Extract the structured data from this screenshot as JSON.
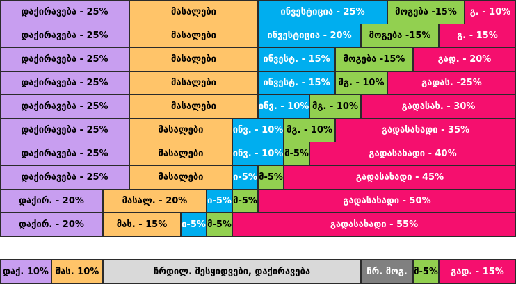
{
  "colors": {
    "lavender": "#c89ef0",
    "orange": "#ffc469",
    "blue": "#00aeef",
    "green": "#92d050",
    "pink": "#f50f6e",
    "gray": "#d9d9d9",
    "dark_gray": "#808080"
  },
  "chart_data": {
    "type": "stacked-bar",
    "rows": [
      {
        "segments": [
          {
            "label": "დაქირავება - 25%",
            "value": 25,
            "color": "lavender"
          },
          {
            "label": "მასალები",
            "value": 25,
            "color": "orange"
          },
          {
            "label": "ინვესტიცია - 25%",
            "value": 25,
            "color": "blue"
          },
          {
            "label": "მოგება -15%",
            "value": 15,
            "color": "green"
          },
          {
            "label": "გ. - 10%",
            "value": 10,
            "color": "pink"
          }
        ]
      },
      {
        "segments": [
          {
            "label": "დაქირავება - 25%",
            "value": 25,
            "color": "lavender"
          },
          {
            "label": "მასალები",
            "value": 25,
            "color": "orange"
          },
          {
            "label": "ინვესტიცია - 20%",
            "value": 20,
            "color": "blue"
          },
          {
            "label": "მოგება -15%",
            "value": 15,
            "color": "green"
          },
          {
            "label": "გ. - 15%",
            "value": 15,
            "color": "pink"
          }
        ]
      },
      {
        "segments": [
          {
            "label": "დაქირავება - 25%",
            "value": 25,
            "color": "lavender"
          },
          {
            "label": "მასალები",
            "value": 25,
            "color": "orange"
          },
          {
            "label": "ინვესტ. - 15%",
            "value": 15,
            "color": "blue"
          },
          {
            "label": "მოგება -15%",
            "value": 15,
            "color": "green"
          },
          {
            "label": "გად. - 20%",
            "value": 20,
            "color": "pink"
          }
        ]
      },
      {
        "segments": [
          {
            "label": "დაქირავება - 25%",
            "value": 25,
            "color": "lavender"
          },
          {
            "label": "მასალები",
            "value": 25,
            "color": "orange"
          },
          {
            "label": "ინვესტ. - 15%",
            "value": 15,
            "color": "blue"
          },
          {
            "label": "მგ. - 10%",
            "value": 10,
            "color": "green"
          },
          {
            "label": "გადას. -25%",
            "value": 25,
            "color": "pink"
          }
        ]
      },
      {
        "segments": [
          {
            "label": "დაქირავება - 25%",
            "value": 25,
            "color": "lavender"
          },
          {
            "label": "მასალები",
            "value": 25,
            "color": "orange"
          },
          {
            "label": "ინვ. - 10%",
            "value": 10,
            "color": "blue"
          },
          {
            "label": "მგ. - 10%",
            "value": 10,
            "color": "green"
          },
          {
            "label": "გადასახ. - 30%",
            "value": 30,
            "color": "pink"
          }
        ]
      },
      {
        "segments": [
          {
            "label": "დაქირავება - 25%",
            "value": 25,
            "color": "lavender"
          },
          {
            "label": "მასალები",
            "value": 20,
            "color": "orange"
          },
          {
            "label": "ინვ. - 10%",
            "value": 10,
            "color": "blue"
          },
          {
            "label": "მგ. - 10%",
            "value": 10,
            "color": "green"
          },
          {
            "label": "გადასახადი - 35%",
            "value": 35,
            "color": "pink"
          }
        ]
      },
      {
        "segments": [
          {
            "label": "დაქირავება - 25%",
            "value": 25,
            "color": "lavender"
          },
          {
            "label": "მასალები",
            "value": 20,
            "color": "orange"
          },
          {
            "label": "ინვ. - 10%",
            "value": 10,
            "color": "blue"
          },
          {
            "label": "მ-5%",
            "value": 5,
            "color": "green"
          },
          {
            "label": "გადასახადი - 40%",
            "value": 40,
            "color": "pink"
          }
        ]
      },
      {
        "segments": [
          {
            "label": "დაქირავება - 25%",
            "value": 25,
            "color": "lavender"
          },
          {
            "label": "მასალები",
            "value": 20,
            "color": "orange"
          },
          {
            "label": "ი-5%",
            "value": 5,
            "color": "blue"
          },
          {
            "label": "მ-5%",
            "value": 5,
            "color": "green"
          },
          {
            "label": "გადასახადი - 45%",
            "value": 45,
            "color": "pink"
          }
        ]
      },
      {
        "segments": [
          {
            "label": "დაქირ. - 20%",
            "value": 20,
            "color": "lavender"
          },
          {
            "label": "მასალ. - 20%",
            "value": 20,
            "color": "orange"
          },
          {
            "label": "ი-5%",
            "value": 5,
            "color": "blue"
          },
          {
            "label": "მ-5%",
            "value": 5,
            "color": "green"
          },
          {
            "label": "გადასახადი - 50%",
            "value": 50,
            "color": "pink"
          }
        ]
      },
      {
        "segments": [
          {
            "label": "დაქირ. - 20%",
            "value": 20,
            "color": "lavender"
          },
          {
            "label": "მას. - 15%",
            "value": 15,
            "color": "orange"
          },
          {
            "label": "ი-5%",
            "value": 5,
            "color": "blue"
          },
          {
            "label": "მ-5%",
            "value": 5,
            "color": "green"
          },
          {
            "label": "გადასახადი - 55%",
            "value": 55,
            "color": "pink"
          }
        ]
      }
    ],
    "bottom_row": {
      "segments": [
        {
          "label": "დაქ. 10%",
          "value": 10,
          "color": "lavender"
        },
        {
          "label": "მას. 10%",
          "value": 10,
          "color": "orange"
        },
        {
          "label": "ჩრდილ. შესყიდვები, დაქირავება",
          "value": 50,
          "color": "gray"
        },
        {
          "label": "ჩრ. მოგ.",
          "value": 10,
          "color": "dark_gray"
        },
        {
          "label": "მ-5%",
          "value": 5,
          "color": "green"
        },
        {
          "label": "გად. - 15%",
          "value": 15,
          "color": "pink"
        }
      ]
    }
  }
}
